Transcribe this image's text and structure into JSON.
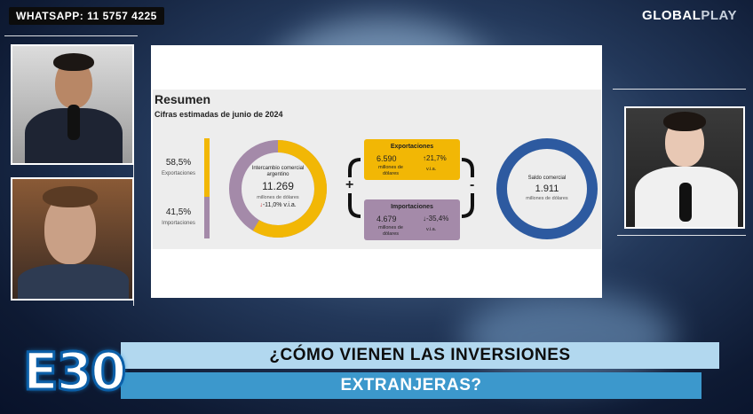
{
  "header": {
    "whatsapp": "WHATSAPP: 11 5757 4225",
    "brand_main": "GLOBAL",
    "brand_suffix": "PLAY"
  },
  "slide": {
    "title": "Resumen",
    "subtitle": "Cifras estimadas de junio de 2024",
    "left_stats": {
      "export_pct": "58,5%",
      "export_label": "Exportaciones",
      "import_pct": "41,5%",
      "import_label": "Importaciones",
      "export_share": 0.585
    },
    "donut_left": {
      "label": "Intercambio comercial argentino",
      "value": "11.269",
      "unit": "millones de dólares",
      "change": "-11,0% v.i.a.",
      "change_arrow": "↓"
    },
    "exports": {
      "title": "Exportaciones",
      "value": "6.590",
      "unit": "millones de dólares",
      "change": "↑21,7%",
      "change_unit": "v.i.a."
    },
    "imports": {
      "title": "Importaciones",
      "value": "4.679",
      "unit": "millones de dólares",
      "change": "↓-35,4%",
      "change_unit": "v.i.a."
    },
    "plus": "+",
    "minus": "-",
    "donut_right": {
      "label": "Saldo comercial",
      "value": "1.911",
      "unit": "millones de dólares"
    }
  },
  "lower_third": {
    "episode": "E30",
    "line1": "¿CÓMO VIENEN LAS INVERSIONES",
    "line2": "EXTRANJERAS?"
  },
  "colors": {
    "export": "#f2b705",
    "import": "#a48aa9",
    "saldo": "#2d5aa0",
    "banner_light": "#b2d8ef",
    "banner_dark": "#3c98cc"
  }
}
